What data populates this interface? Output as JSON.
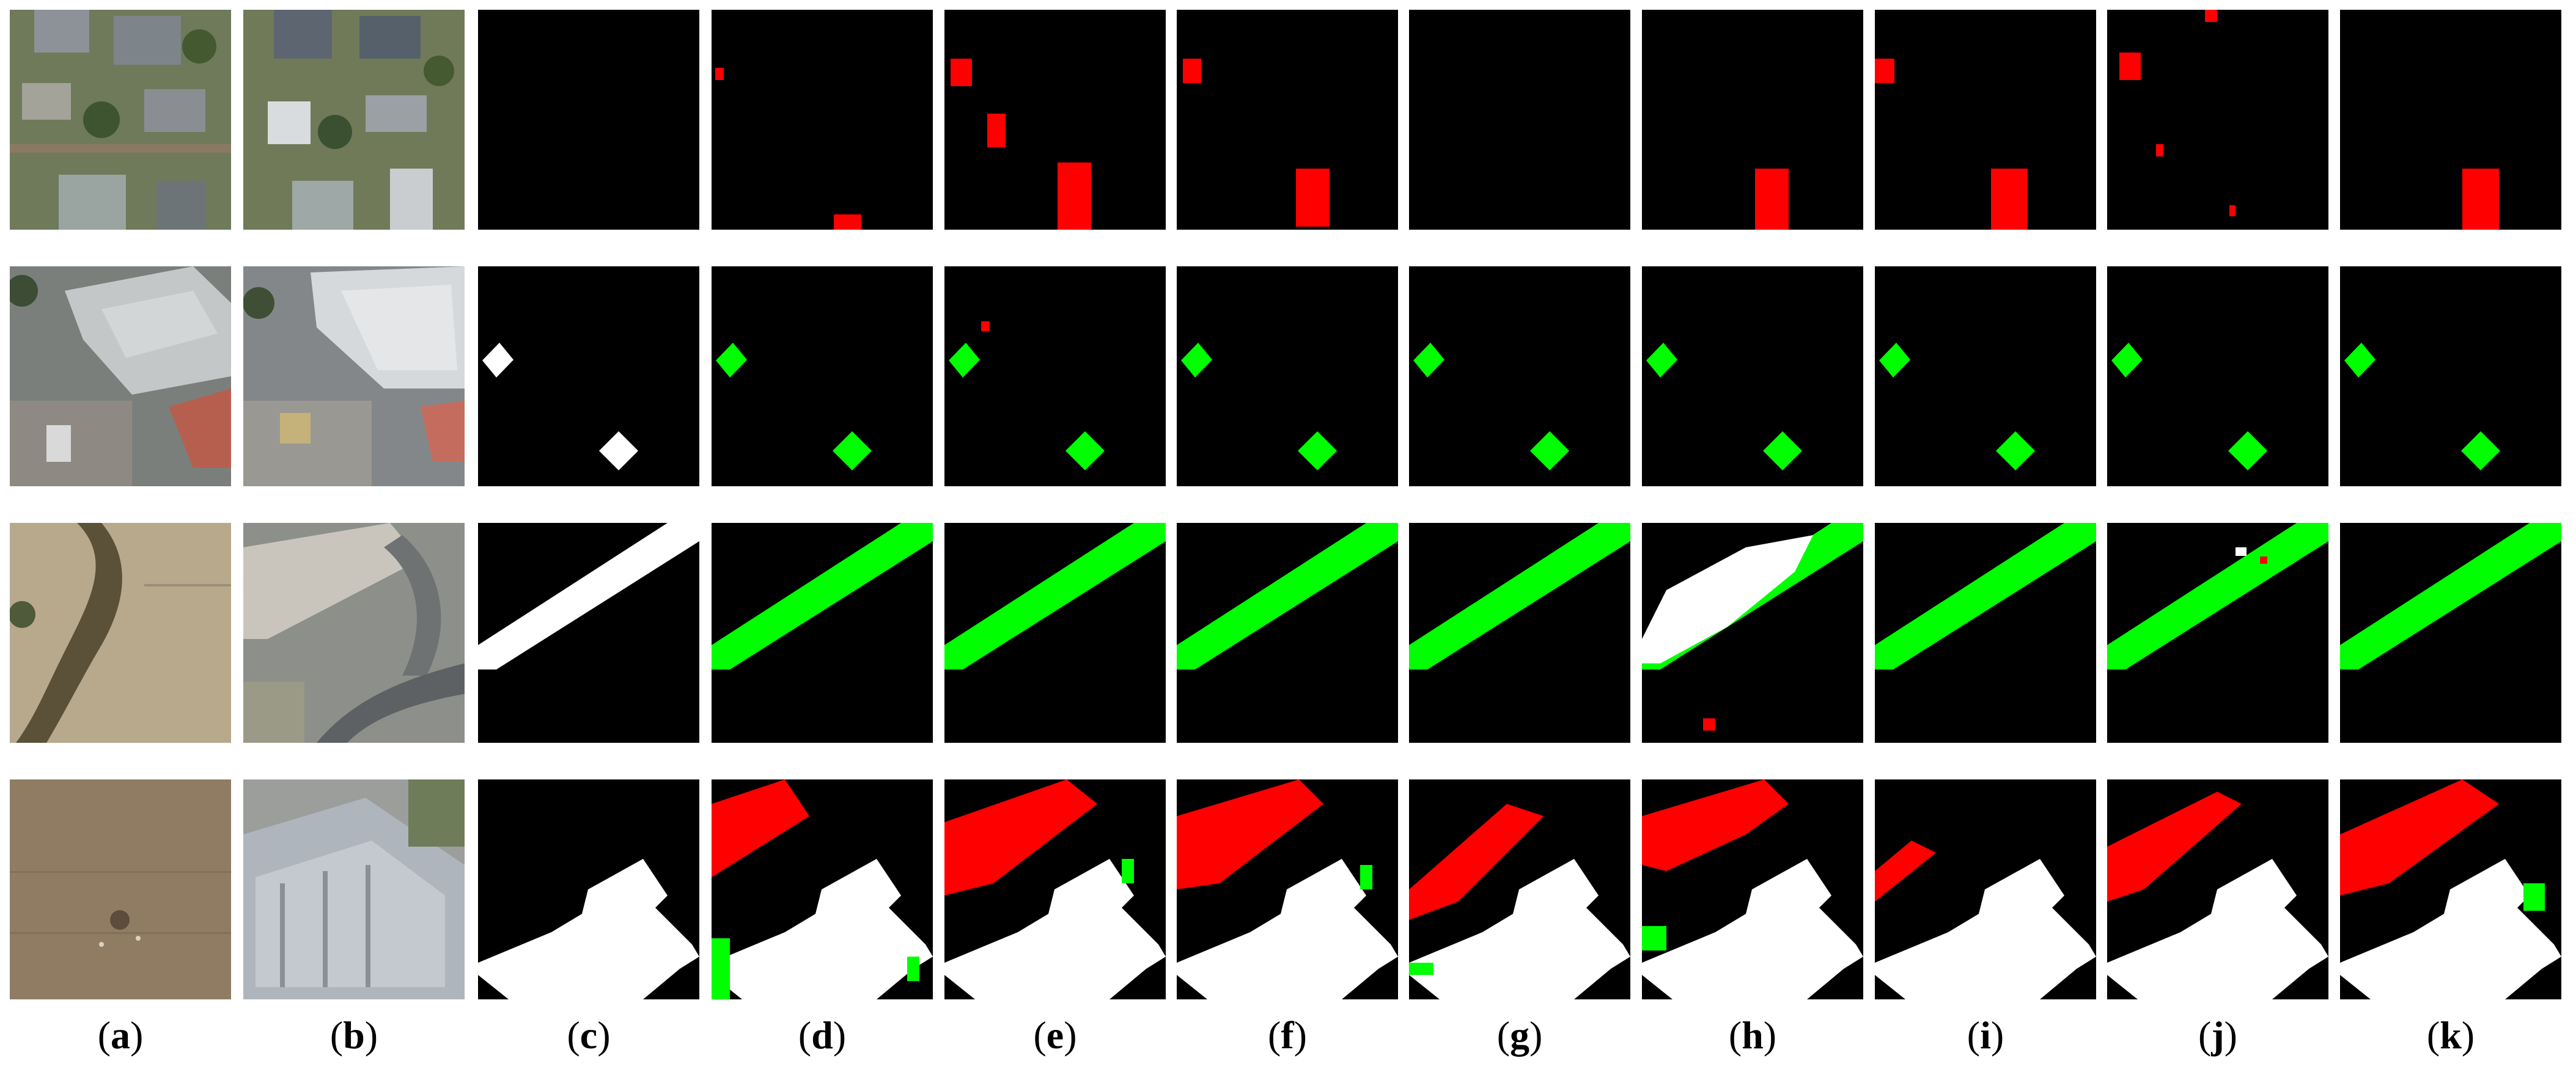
{
  "figure": {
    "columns": [
      {
        "key": "a",
        "label": "a",
        "kind": "image-t1"
      },
      {
        "key": "b",
        "label": "b",
        "kind": "image-t2"
      },
      {
        "key": "c",
        "label": "c",
        "kind": "ground-truth"
      },
      {
        "key": "d",
        "label": "d",
        "kind": "prediction"
      },
      {
        "key": "e",
        "label": "e",
        "kind": "prediction"
      },
      {
        "key": "f",
        "label": "f",
        "kind": "prediction"
      },
      {
        "key": "g",
        "label": "g",
        "kind": "prediction"
      },
      {
        "key": "h",
        "label": "h",
        "kind": "prediction"
      },
      {
        "key": "i",
        "label": "i",
        "kind": "prediction"
      },
      {
        "key": "j",
        "label": "j",
        "kind": "prediction"
      },
      {
        "key": "k",
        "label": "k",
        "kind": "prediction"
      }
    ],
    "rows": [
      {
        "key": "row-1",
        "scene": "suburban-houses"
      },
      {
        "key": "row-2",
        "scene": "industrial-warehouse"
      },
      {
        "key": "row-3",
        "scene": "river-and-road"
      },
      {
        "key": "row-4",
        "scene": "bare-land-to-building"
      }
    ],
    "colors": {
      "true_positive": "#ffffff",
      "false_positive": "#ff0000",
      "false_negative": "#00ff00",
      "true_negative": "#000000"
    }
  }
}
